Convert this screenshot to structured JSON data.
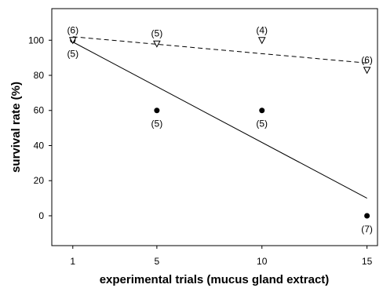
{
  "chart_data": {
    "type": "scatter",
    "title": "",
    "xlabel": "experimental trials (mucus gland extract)",
    "ylabel": "survival rate (%)",
    "x_ticks": [
      1,
      5,
      10,
      15
    ],
    "y_ticks": [
      0,
      20,
      40,
      60,
      80,
      100
    ],
    "xlim": [
      0,
      15.5
    ],
    "ylim": [
      -17,
      118
    ],
    "grid": false,
    "legend": "none",
    "series": [
      {
        "marker": "filled-circle",
        "points": [
          {
            "x": 1,
            "y": 100,
            "n": "(5)"
          },
          {
            "x": 5,
            "y": 60,
            "n": "(5)"
          },
          {
            "x": 10,
            "y": 60,
            "n": "(5)"
          },
          {
            "x": 15,
            "y": 0,
            "n": "(7)"
          }
        ],
        "trendline": {
          "style": "solid",
          "x": [
            1,
            15
          ],
          "y": [
            99,
            10
          ]
        }
      },
      {
        "marker": "open-triangle-down",
        "points": [
          {
            "x": 1,
            "y": 100,
            "n": "(6)"
          },
          {
            "x": 5,
            "y": 98,
            "n": "(5)"
          },
          {
            "x": 10,
            "y": 100,
            "n": "(4)"
          },
          {
            "x": 15,
            "y": 83,
            "n": "(6)"
          }
        ],
        "trendline": {
          "style": "dashed",
          "x": [
            1,
            15
          ],
          "y": [
            102,
            87
          ]
        }
      }
    ]
  }
}
